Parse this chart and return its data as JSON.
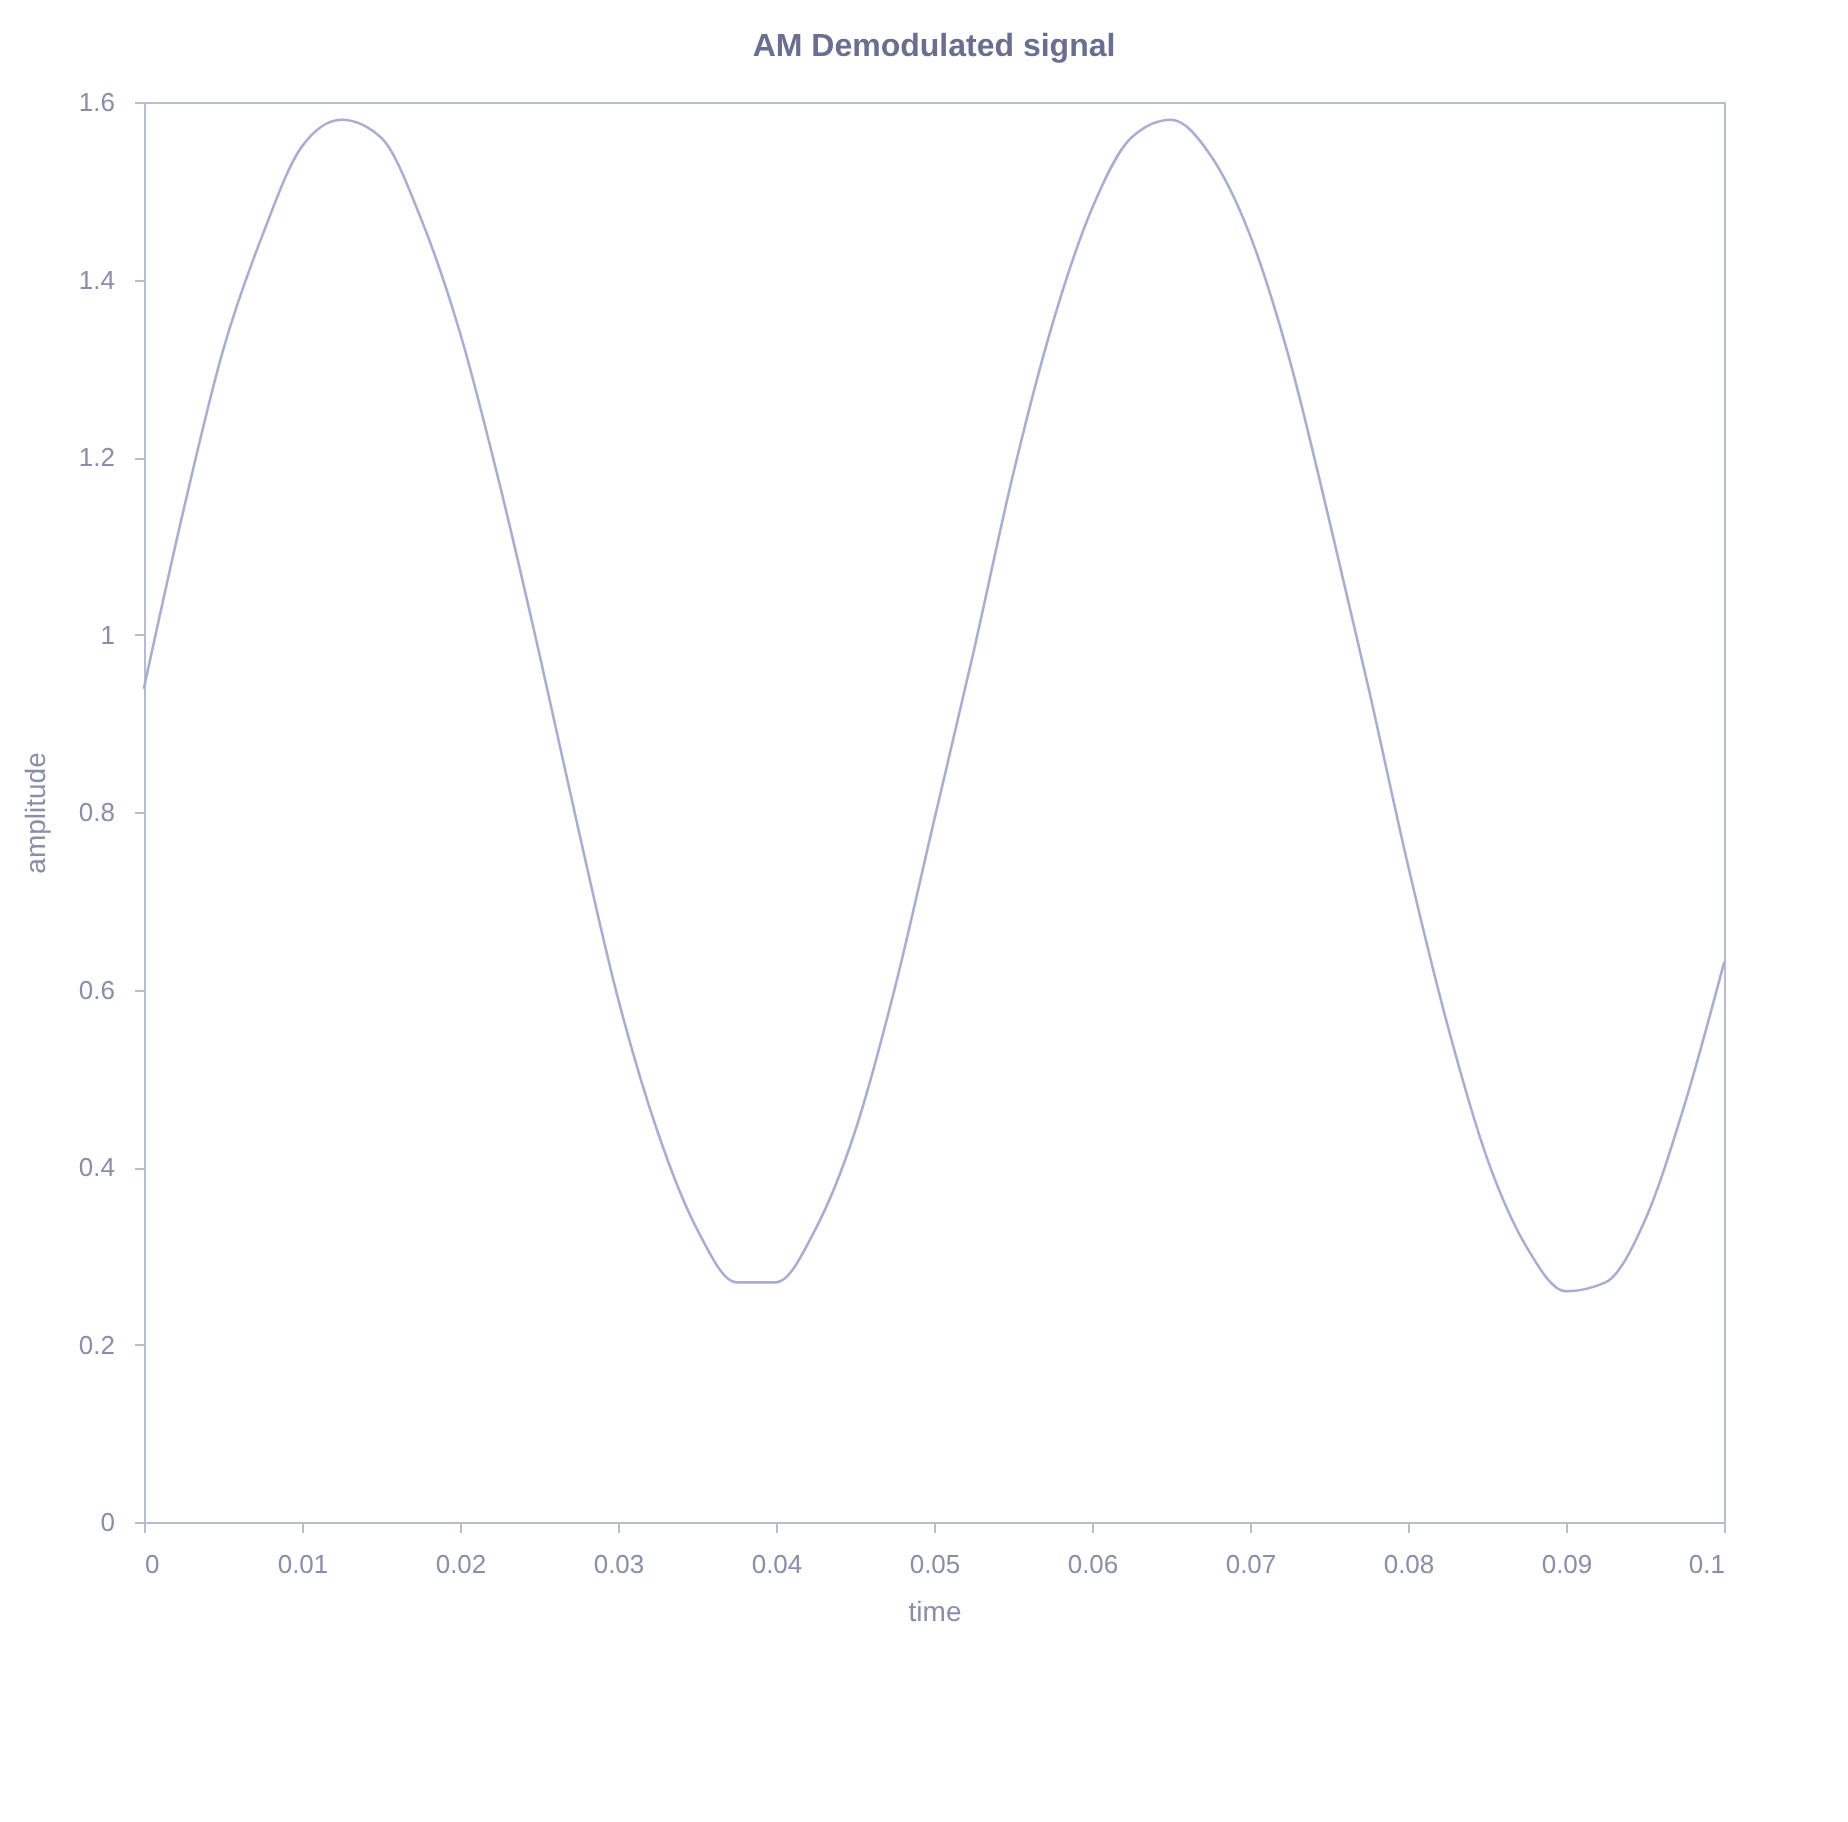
{
  "chart_data": {
    "type": "line",
    "title": "AM Demodulated signal",
    "xlabel": "time",
    "ylabel": "amplitude",
    "x": [
      0,
      0.0025,
      0.005,
      0.0075,
      0.01,
      0.0125,
      0.015,
      0.0175,
      0.02,
      0.0225,
      0.025,
      0.0275,
      0.03,
      0.0325,
      0.035,
      0.0375,
      0.04,
      0.0425,
      0.045,
      0.0475,
      0.05,
      0.0525,
      0.055,
      0.0575,
      0.06,
      0.0625,
      0.065,
      0.0675,
      0.07,
      0.0725,
      0.075,
      0.0775,
      0.08,
      0.0825,
      0.085,
      0.0875,
      0.09,
      0.0925,
      0.095,
      0.0975,
      0.1
    ],
    "series": [
      {
        "color": "#a8aed0",
        "values": [
          0.94,
          1.14,
          1.32,
          1.45,
          1.55,
          1.58,
          1.56,
          1.47,
          1.34,
          1.17,
          0.98,
          0.78,
          0.59,
          0.44,
          0.33,
          0.27,
          0.27,
          0.33,
          0.44,
          0.6,
          0.79,
          0.98,
          1.18,
          1.35,
          1.48,
          1.56,
          1.58,
          1.54,
          1.45,
          1.31,
          1.13,
          0.94,
          0.74,
          0.56,
          0.41,
          0.31,
          0.26,
          0.27,
          0.34,
          0.47,
          0.63
        ]
      }
    ],
    "xlim": [
      0,
      0.1
    ],
    "xticks": [
      0,
      0.01,
      0.02,
      0.03,
      0.04,
      0.05,
      0.06,
      0.07,
      0.08,
      0.09,
      0.1
    ],
    "ylim": [
      0,
      1.6
    ],
    "yticks": [
      0,
      0.2,
      0.4,
      0.6,
      0.8,
      1,
      1.2,
      1.4,
      1.6
    ],
    "grid": false,
    "marker": "none",
    "line_style": "solid"
  }
}
